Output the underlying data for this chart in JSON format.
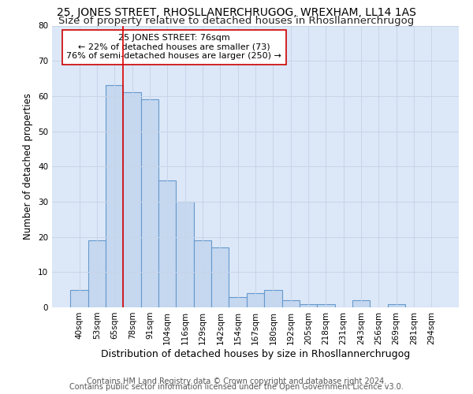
{
  "title": "25, JONES STREET, RHOSLLANERCHRUGOG, WREXHAM, LL14 1AS",
  "subtitle": "Size of property relative to detached houses in Rhosllannerchrugog",
  "xlabel": "Distribution of detached houses by size in Rhosllannerchrugog",
  "ylabel": "Number of detached properties",
  "categories": [
    "40sqm",
    "53sqm",
    "65sqm",
    "78sqm",
    "91sqm",
    "104sqm",
    "116sqm",
    "129sqm",
    "142sqm",
    "154sqm",
    "167sqm",
    "180sqm",
    "192sqm",
    "205sqm",
    "218sqm",
    "231sqm",
    "243sqm",
    "256sqm",
    "269sqm",
    "281sqm",
    "294sqm"
  ],
  "values": [
    5,
    19,
    63,
    61,
    59,
    36,
    30,
    19,
    17,
    3,
    4,
    5,
    2,
    1,
    1,
    0,
    2,
    0,
    1,
    0,
    0
  ],
  "bar_color": "#c5d8f0",
  "bar_edge_color": "#6699cc",
  "vline_x": 3,
  "vline_color": "#dd0000",
  "annotation_line1": "25 JONES STREET: 76sqm",
  "annotation_line2": "← 22% of detached houses are smaller (73)",
  "annotation_line3": "76% of semi-detached houses are larger (250) →",
  "annotation_box_color": "#ffffff",
  "annotation_box_edge": "#cc0000",
  "ylim": [
    0,
    80
  ],
  "yticks": [
    0,
    10,
    20,
    30,
    40,
    50,
    60,
    70,
    80
  ],
  "grid_color": "#c8d4e8",
  "bg_color": "#dce8f8",
  "fig_bg_color": "#ffffff",
  "footer1": "Contains HM Land Registry data © Crown copyright and database right 2024.",
  "footer2": "Contains public sector information licensed under the Open Government Licence v3.0.",
  "title_fontsize": 10,
  "subtitle_fontsize": 9.5,
  "xlabel_fontsize": 9,
  "ylabel_fontsize": 8.5,
  "tick_fontsize": 7.5,
  "annot_fontsize": 8,
  "footer_fontsize": 7
}
